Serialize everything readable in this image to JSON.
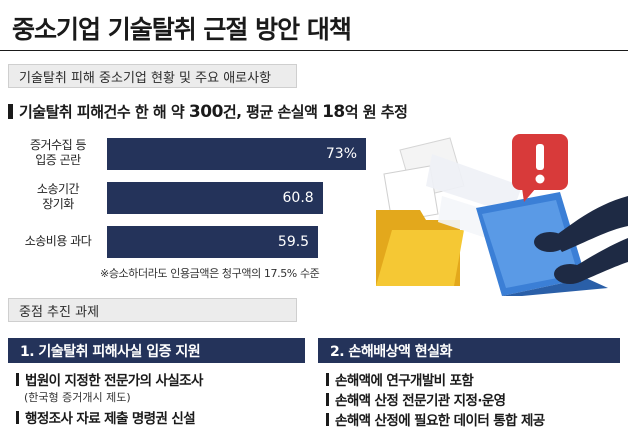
{
  "title": "중소기업 기술탈취 근절 방안 대책",
  "section1": "기술탈취 피해 중소기업 현황 및 주요 애로사항",
  "headline": {
    "prefix": "기술탈취 피해건수 한 해 약 ",
    "count": "300",
    "middle": "건, 평균 손실액 ",
    "loss": "18",
    "suffix": "억 원 추정"
  },
  "chart_data": {
    "type": "bar",
    "orientation": "horizontal",
    "categories": [
      [
        "증거수집 등",
        "입증 곤란"
      ],
      [
        "소송기간",
        "장기화"
      ],
      [
        "소송비용 과다"
      ]
    ],
    "values": [
      73,
      60.8,
      59.5
    ],
    "value_labels": [
      "73%",
      "60.8",
      "59.5"
    ],
    "xlim": [
      0,
      80
    ],
    "grid": false,
    "colors": {
      "bar": "#24335a",
      "value_text": "#ffffff"
    }
  },
  "footnote": "※승소하더라도 인용금액은 청구액의 17.5% 수준",
  "section2": "중점 추진 과제",
  "column1": {
    "heading": "1. 기술탈취 피해사실 입증 지원",
    "items": [
      "법원이 지정한 전문가의 사실조사",
      "행정조사 자료 제출 명령권 신설"
    ],
    "sub": "(한국형 증거개시 제도)"
  },
  "column2": {
    "heading": "2. 손해배상액 현실화",
    "items": [
      "손해액에 연구개발비 포함",
      "손해액 산정 전문기관 지정·운영",
      "손해액 산정에 필요한 데이터 통합 제공"
    ]
  },
  "illustration": {
    "icons": [
      "exclamation-icon",
      "folder-icon",
      "laptop-icon",
      "hacker-hands-icon",
      "document-icon"
    ],
    "colors": {
      "alert": "#d83a3a",
      "folder": "#f2c230",
      "laptop": "#3b7fd6",
      "hands": "#1e2a44"
    }
  }
}
